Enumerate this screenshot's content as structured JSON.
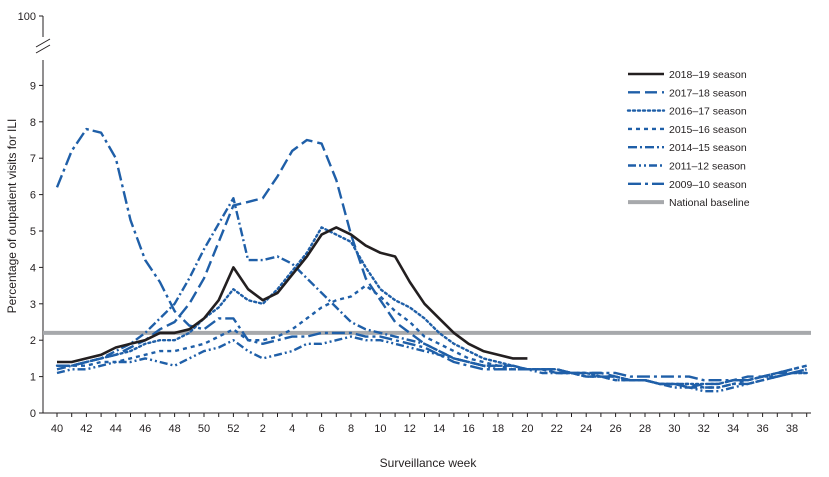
{
  "chart_data": {
    "type": "line",
    "title": "",
    "xlabel": "Surveillance week",
    "ylabel": "Percentage of outpatient visits for ILI",
    "y_ticks": [
      "0",
      "1",
      "2",
      "3",
      "4",
      "5",
      "6",
      "7",
      "8",
      "9",
      "100"
    ],
    "y_axis_break": "between 9 and 100",
    "ylim": [
      0,
      10
    ],
    "x_tick_labels": [
      "40",
      "42",
      "44",
      "46",
      "48",
      "50",
      "52",
      "2",
      "4",
      "6",
      "8",
      "10",
      "12",
      "14",
      "16",
      "18",
      "20",
      "22",
      "24",
      "26",
      "28",
      "30",
      "32",
      "34",
      "36",
      "38"
    ],
    "x_range": "week 40 to week 39 (52 weeks)",
    "grid": false,
    "legend_position": "top-right",
    "baseline": {
      "name": "National baseline",
      "value": 2.2,
      "color": "#a7a9ac"
    },
    "series": [
      {
        "name": "2018–19 season",
        "color": "#231f20",
        "style": "solid",
        "values": [
          1.4,
          1.4,
          1.5,
          1.6,
          1.8,
          1.9,
          2.0,
          2.2,
          2.2,
          2.3,
          2.6,
          3.1,
          4.0,
          3.4,
          3.1,
          3.3,
          3.8,
          4.3,
          4.9,
          5.1,
          4.9,
          4.6,
          4.4,
          4.3,
          3.6,
          3.0,
          2.6,
          2.2,
          1.9,
          1.7,
          1.6,
          1.5,
          1.5
        ]
      },
      {
        "name": "2017–18 season",
        "color": "#1f5fa8",
        "style": "long-dash",
        "values": [
          1.3,
          1.3,
          1.4,
          1.5,
          1.6,
          1.8,
          2.0,
          2.3,
          2.5,
          3.0,
          3.7,
          4.7,
          5.7,
          5.8,
          5.9,
          6.5,
          7.2,
          7.5,
          7.4,
          6.4,
          4.9,
          3.7,
          3.1,
          2.5,
          2.2,
          1.9,
          1.7,
          1.5,
          1.4,
          1.3,
          1.3,
          1.3,
          1.2,
          1.2,
          1.2,
          1.1,
          1.1,
          1.1,
          1.0,
          0.9,
          0.9,
          0.8,
          0.8,
          0.7,
          0.8,
          0.8,
          0.9,
          1.0,
          1.0,
          1.1,
          1.1,
          1.2
        ]
      },
      {
        "name": "2016–17 season",
        "color": "#1f5fa8",
        "style": "dotted",
        "values": [
          1.3,
          1.3,
          1.4,
          1.5,
          1.6,
          1.7,
          1.9,
          2.0,
          2.0,
          2.2,
          2.6,
          2.9,
          3.4,
          3.1,
          3.0,
          3.4,
          3.9,
          4.4,
          5.1,
          4.9,
          4.7,
          4.0,
          3.4,
          3.1,
          2.9,
          2.6,
          2.2,
          1.9,
          1.7,
          1.5,
          1.4,
          1.3,
          1.2,
          1.2,
          1.2,
          1.1,
          1.1,
          1.0,
          1.0,
          0.9,
          0.9,
          0.8,
          0.8,
          0.8,
          0.8,
          0.8,
          0.9,
          0.9,
          1.0,
          1.0,
          1.1,
          1.1
        ]
      },
      {
        "name": "2015–16 season",
        "color": "#1f5fa8",
        "style": "short-dash",
        "values": [
          1.3,
          1.3,
          1.3,
          1.4,
          1.4,
          1.5,
          1.6,
          1.7,
          1.7,
          1.8,
          1.9,
          2.1,
          2.3,
          2.0,
          2.0,
          2.1,
          2.3,
          2.6,
          2.9,
          3.1,
          3.2,
          3.5,
          3.2,
          2.8,
          2.5,
          2.1,
          1.9,
          1.7,
          1.5,
          1.4,
          1.3,
          1.2,
          1.2,
          1.2,
          1.1,
          1.1,
          1.0,
          1.0,
          0.9,
          0.9,
          0.9,
          0.8,
          0.8,
          0.8,
          0.7,
          0.7,
          0.8,
          0.9,
          1.0,
          1.1,
          1.2,
          1.3
        ]
      },
      {
        "name": "2014–15 season",
        "color": "#1f5fa8",
        "style": "dash-dot",
        "values": [
          1.2,
          1.3,
          1.4,
          1.5,
          1.7,
          1.9,
          2.2,
          2.6,
          3.0,
          3.7,
          4.5,
          5.2,
          5.9,
          4.2,
          4.2,
          4.3,
          4.1,
          3.7,
          3.3,
          2.9,
          2.5,
          2.3,
          2.2,
          2.1,
          2.0,
          1.9,
          1.7,
          1.5,
          1.4,
          1.3,
          1.3,
          1.3,
          1.2,
          1.2,
          1.1,
          1.1,
          1.0,
          1.0,
          1.0,
          0.9,
          0.9,
          0.8,
          0.8,
          0.7,
          0.7,
          0.7,
          0.8,
          0.8,
          0.9,
          1.0,
          1.1,
          1.2
        ]
      },
      {
        "name": "2011–12 season",
        "color": "#1f5fa8",
        "style": "dash-dot-dot",
        "values": [
          1.1,
          1.2,
          1.2,
          1.3,
          1.4,
          1.4,
          1.5,
          1.4,
          1.3,
          1.5,
          1.7,
          1.8,
          2.0,
          1.7,
          1.5,
          1.6,
          1.7,
          1.9,
          1.9,
          2.0,
          2.1,
          2.0,
          2.0,
          1.9,
          1.8,
          1.7,
          1.6,
          1.5,
          1.4,
          1.3,
          1.2,
          1.2,
          1.2,
          1.1,
          1.1,
          1.1,
          1.0,
          1.0,
          0.9,
          0.9,
          0.9,
          0.8,
          0.7,
          0.7,
          0.6,
          0.6,
          0.7,
          0.8,
          0.9,
          1.0,
          1.1,
          1.1
        ]
      },
      {
        "name": "2009–10 season",
        "color": "#1f5fa8",
        "style": "long-dash-dot",
        "values": [
          6.2,
          7.2,
          7.8,
          7.7,
          7.0,
          5.3,
          4.2,
          3.6,
          2.8,
          2.4,
          2.3,
          2.6,
          2.6,
          2.0,
          1.9,
          2.0,
          2.1,
          2.1,
          2.2,
          2.2,
          2.2,
          2.1,
          2.1,
          2.0,
          1.9,
          1.8,
          1.6,
          1.4,
          1.3,
          1.2,
          1.2,
          1.2,
          1.2,
          1.2,
          1.2,
          1.1,
          1.1,
          1.1,
          1.1,
          1.0,
          1.0,
          1.0,
          1.0,
          1.0,
          0.9,
          0.9,
          0.9,
          0.9,
          1.0,
          1.1,
          1.2,
          1.3
        ]
      }
    ]
  }
}
